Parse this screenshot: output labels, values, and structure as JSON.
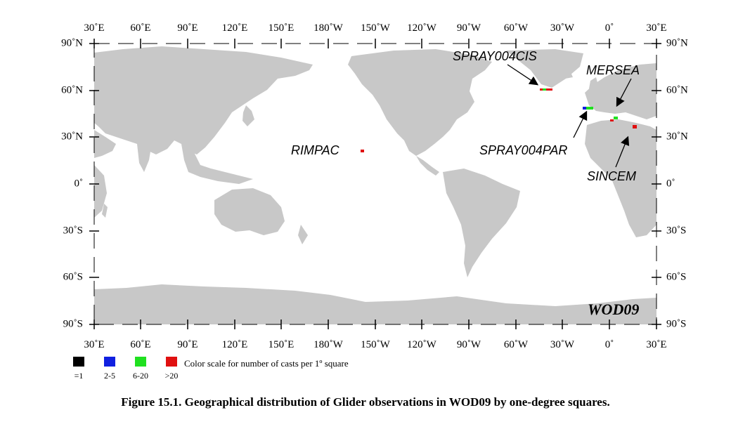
{
  "map": {
    "lon_labels": [
      "30˚E",
      "60˚E",
      "90˚E",
      "120˚E",
      "150˚E",
      "180˚W",
      "150˚W",
      "120˚W",
      "90˚W",
      "60˚W",
      "30˚W",
      "0˚",
      "30˚E"
    ],
    "lat_labels": [
      "90˚N",
      "60˚N",
      "30˚N",
      "0˚",
      "30˚S",
      "60˚S",
      "90˚S"
    ],
    "stamp": "WOD09",
    "land_color": "#c8c8c8",
    "annotations": [
      {
        "key": "spray_cis",
        "text": "SPRAY004CIS"
      },
      {
        "key": "mersea",
        "text": "MERSEA"
      },
      {
        "key": "rimpac",
        "text": "RIMPAC"
      },
      {
        "key": "spray_par",
        "text": "SPRAY004PAR"
      },
      {
        "key": "sincem",
        "text": "SINCEM"
      }
    ]
  },
  "legend": {
    "items": [
      {
        "label": "=1",
        "color": "#000000"
      },
      {
        "label": "2-5",
        "color": "#1020e0"
      },
      {
        "label": "6-20",
        "color": "#20e020"
      },
      {
        "label": ">20",
        "color": "#e01010"
      }
    ],
    "description": "Color scale for number of casts per 1º square"
  },
  "caption": "Figure 15.1. Geographical distribution of Glider observations in WOD09 by one-degree squares."
}
